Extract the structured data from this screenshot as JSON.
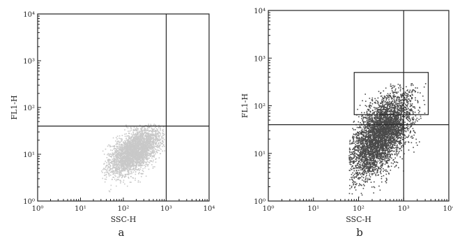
{
  "chart_data": [
    {
      "type": "scatter",
      "panel_label": "a",
      "xlabel": "SSC-H",
      "ylabel": "FL1-H",
      "x_scale": "log",
      "y_scale": "log",
      "xlim": [
        1,
        10000
      ],
      "ylim": [
        1,
        10000
      ],
      "x_tick_labels": [
        "10⁰",
        "10¹",
        "10²",
        "10³",
        "10⁴"
      ],
      "y_tick_labels": [
        "10⁰",
        "10¹",
        "10²",
        "10³",
        "10⁴"
      ],
      "quadrant_lines": {
        "x": 1000,
        "y": 40
      },
      "gate": null,
      "point_color": "#c9c9c9",
      "population": {
        "description": "single dense population",
        "center": [
          180,
          12
        ],
        "log_spread": [
          0.3,
          0.25
        ],
        "correlation": 0.55,
        "x_range": [
          30,
          900
        ],
        "y_range": [
          1.1,
          45
        ]
      }
    },
    {
      "type": "scatter",
      "panel_label": "b",
      "xlabel": "SSC-H",
      "ylabel": "FL1-H",
      "x_scale": "log",
      "y_scale": "log",
      "xlim": [
        1,
        10000
      ],
      "ylim": [
        1,
        10000
      ],
      "x_tick_labels": [
        "10⁰",
        "10¹",
        "10²",
        "10³",
        "10⁴"
      ],
      "y_tick_labels": [
        "10⁰",
        "10¹",
        "10²",
        "10³",
        "10⁴"
      ],
      "quadrant_lines": {
        "x": 1000,
        "y": 40
      },
      "gate": {
        "x": [
          80,
          3500
        ],
        "y": [
          65,
          500
        ]
      },
      "point_color": "#4a4a4a",
      "population": {
        "description": "dense population shifted up with elongated upper tail",
        "center": [
          300,
          25
        ],
        "log_spread": [
          0.35,
          0.45
        ],
        "correlation": 0.6,
        "x_range": [
          60,
          3000
        ],
        "y_range": [
          1.2,
          300
        ]
      }
    }
  ]
}
